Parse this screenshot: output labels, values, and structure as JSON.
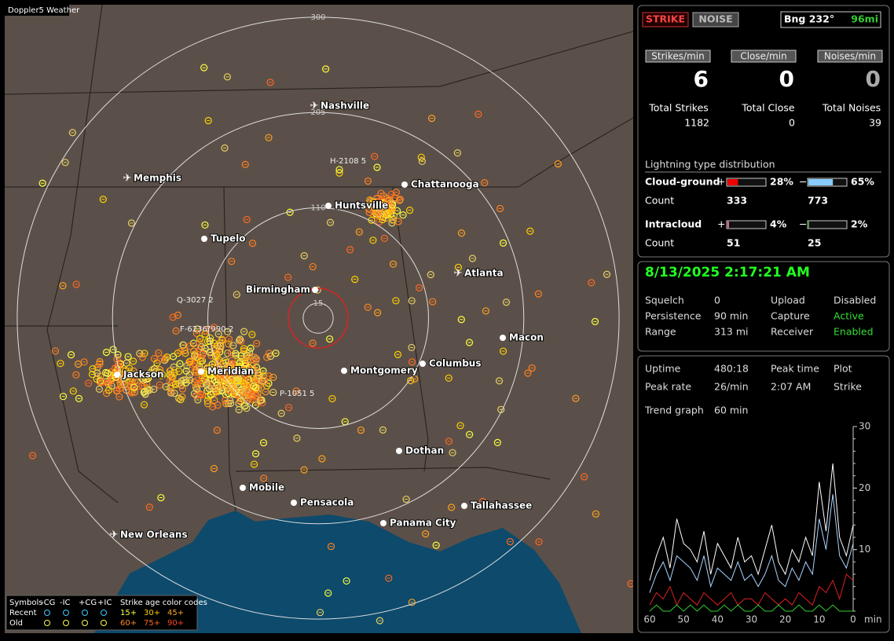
{
  "header": {
    "title": "Doppler5 Weather"
  },
  "map": {
    "rings": [
      300,
      205,
      110,
      15
    ],
    "cities": [
      "Nashville",
      "Memphis",
      "Chattanooga",
      "Huntsville",
      "Tupelo",
      "Atlanta",
      "Birmingham",
      "Macon",
      "Jackson",
      "Meridian",
      "Montgomery",
      "Columbus",
      "Dothan",
      "Mobile",
      "Pensacola",
      "Tallahassee",
      "Panama City",
      "New Orleans"
    ],
    "storm_labels": [
      "H-2108 5",
      "Q-3027 2",
      "F-6236",
      "7990-2",
      "P-1051 5"
    ]
  },
  "legend": {
    "title": "Symbols",
    "types": [
      "-CG",
      "-IC",
      "+CG",
      "+IC"
    ],
    "rows": [
      "Recent",
      "Old"
    ],
    "age_title": "Strike age color codes",
    "ages": [
      "15+",
      "30+",
      "45+",
      "60+",
      "75+",
      "90+"
    ]
  },
  "panel": {
    "mode_buttons": [
      "STRIKE",
      "NOISE"
    ],
    "bearing": "Bng 232°",
    "distance": "96mi",
    "rates": [
      {
        "label": "Strikes/min",
        "value": 6
      },
      {
        "label": "Close/min",
        "value": 0
      },
      {
        "label": "Noises/min",
        "value": 0
      }
    ],
    "totals": [
      {
        "label": "Total Strikes",
        "value": 1182
      },
      {
        "label": "Total Close",
        "value": 0
      },
      {
        "label": "Total Noises",
        "value": 39
      }
    ],
    "distribution": {
      "title": "Lightning type distribution",
      "count_label": "Count",
      "plus": "+",
      "minus": "−",
      "rows": [
        {
          "name": "Cloud-ground",
          "plus": {
            "value": 28,
            "label": "28%"
          },
          "minus": {
            "value": 65,
            "label": "65%"
          },
          "plus_count": 333,
          "minus_count": 773
        },
        {
          "name": "Intracloud",
          "plus": {
            "value": 4,
            "label": "4%"
          },
          "minus": {
            "value": 2,
            "label": "2%"
          },
          "plus_count": 51,
          "minus_count": 25
        }
      ]
    }
  },
  "status": {
    "datetime": "8/13/2025 2:17:21 AM",
    "rows": [
      [
        "Squelch",
        "0",
        "Upload",
        "Disabled"
      ],
      [
        "Persistence",
        "90 min",
        "Capture",
        "Active"
      ],
      [
        "Range",
        "313 mi",
        "Receiver",
        "Enabled"
      ]
    ]
  },
  "stats": {
    "rows": [
      [
        "Uptime",
        "480:18",
        "Peak time",
        "2:07 AM",
        "Plot",
        "Strike"
      ],
      [
        "Peak rate",
        "26/min"
      ]
    ],
    "trend_label": "Trend graph",
    "trend_value": "60 min"
  },
  "chart_data": {
    "type": "line",
    "xlabel": "min",
    "x": [
      60,
      58,
      56,
      54,
      52,
      50,
      48,
      46,
      44,
      42,
      40,
      38,
      36,
      34,
      32,
      30,
      28,
      26,
      24,
      22,
      20,
      18,
      16,
      14,
      12,
      10,
      8,
      6,
      4,
      2,
      0
    ],
    "xlim": [
      60,
      0
    ],
    "xticks": [
      60,
      50,
      40,
      30,
      20,
      10,
      0
    ],
    "ylim": [
      0,
      30
    ],
    "yticks": [
      10,
      20,
      30
    ],
    "series": [
      {
        "name": "Total",
        "color": "#ffffff",
        "values": [
          5,
          9,
          12,
          7,
          15,
          11,
          10,
          8,
          13,
          6,
          11,
          9,
          7,
          12,
          8,
          9,
          6,
          10,
          14,
          8,
          6,
          10,
          8,
          12,
          9,
          21,
          13,
          24,
          12,
          9,
          14
        ]
      },
      {
        "name": "-CG",
        "color": "#a8d4ff",
        "values": [
          3,
          6,
          8,
          5,
          9,
          8,
          7,
          5,
          9,
          4,
          7,
          6,
          5,
          8,
          5,
          6,
          4,
          6,
          9,
          5,
          4,
          7,
          5,
          8,
          6,
          15,
          10,
          19,
          9,
          7,
          11
        ]
      },
      {
        "name": "+CG",
        "color": "#e02020",
        "values": [
          1,
          3,
          2,
          4,
          1,
          3,
          2,
          1,
          3,
          2,
          1,
          2,
          3,
          1,
          2,
          2,
          1,
          3,
          2,
          1,
          2,
          1,
          3,
          2,
          1,
          4,
          3,
          5,
          2,
          6,
          5
        ]
      },
      {
        "name": "IC",
        "color": "#30d030",
        "values": [
          0,
          1,
          0,
          0,
          1,
          0,
          1,
          0,
          1,
          0,
          0,
          1,
          0,
          1,
          0,
          0,
          1,
          0,
          0,
          1,
          0,
          0,
          1,
          0,
          0,
          1,
          0,
          1,
          0,
          0,
          0
        ]
      }
    ]
  }
}
